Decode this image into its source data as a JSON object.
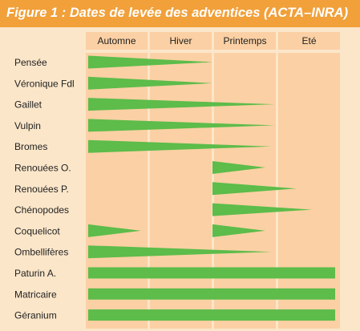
{
  "figure": {
    "title": "Figure 1 : Dates de levée des adventices (ACTA–INRA)"
  },
  "colors": {
    "background": "#fbe6c9",
    "title_bar": "#f1a03a",
    "title_text": "#ffffff",
    "season_cell": "#fbd0a4",
    "bar": "#5dbc4a",
    "text": "#222222"
  },
  "chart_data": {
    "type": "bar",
    "orientation": "horizontal",
    "title": "Figure 1 : Dates de levée des adventices (ACTA–INRA)",
    "x_categories": [
      "Automne",
      "Hiver",
      "Printemps",
      "Eté"
    ],
    "x_range": [
      0,
      4
    ],
    "series": [
      {
        "label": "Pensée",
        "start": 0,
        "end": 2.0,
        "shape": "taper"
      },
      {
        "label": "Véronique Fdl",
        "start": 0,
        "end": 2.0,
        "shape": "taper"
      },
      {
        "label": "Gaillet",
        "start": 0,
        "end": 3.0,
        "shape": "taper"
      },
      {
        "label": "Vulpin",
        "start": 0,
        "end": 3.0,
        "shape": "taper"
      },
      {
        "label": "Bromes",
        "start": 0,
        "end": 2.95,
        "shape": "taper"
      },
      {
        "label": "Renouées O.",
        "start": 2.0,
        "end": 2.85,
        "shape": "taper"
      },
      {
        "label": "Renouées P.",
        "start": 2.0,
        "end": 3.35,
        "shape": "taper"
      },
      {
        "label": "Chénopodes",
        "start": 2.0,
        "end": 3.6,
        "shape": "taper"
      },
      {
        "label": "Coquelicot",
        "start": 0,
        "end": 0.85,
        "shape": "taper"
      },
      {
        "label": "Coquelicot",
        "start": 2.0,
        "end": 2.85,
        "shape": "taper"
      },
      {
        "label": "Ombellifères",
        "start": 0,
        "end": 2.95,
        "shape": "taper"
      },
      {
        "label": "Paturin A.",
        "start": 0,
        "end": 4.0,
        "shape": "full"
      },
      {
        "label": "Matricaire",
        "start": 0,
        "end": 4.0,
        "shape": "full"
      },
      {
        "label": "Géranium",
        "start": 0,
        "end": 4.0,
        "shape": "full"
      }
    ],
    "rows": [
      "Pensée",
      "Véronique Fdl",
      "Gaillet",
      "Vulpin",
      "Bromes",
      "Renouées O.",
      "Renouées P.",
      "Chénopodes",
      "Coquelicot",
      "Ombellifères",
      "Paturin A.",
      "Matricaire",
      "Géranium"
    ]
  }
}
